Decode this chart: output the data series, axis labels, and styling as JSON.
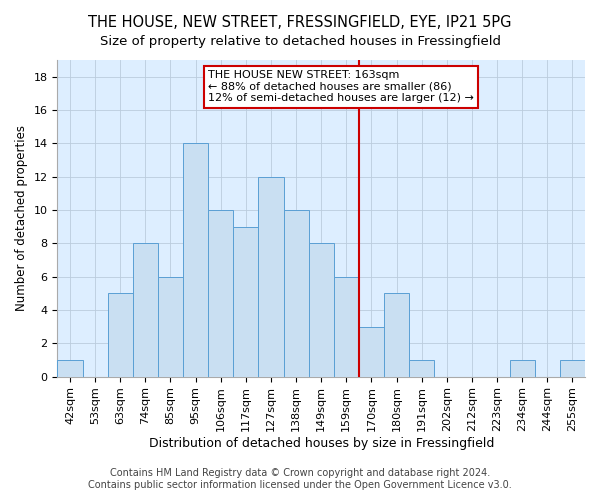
{
  "title": "THE HOUSE, NEW STREET, FRESSINGFIELD, EYE, IP21 5PG",
  "subtitle": "Size of property relative to detached houses in Fressingfield",
  "xlabel": "Distribution of detached houses by size in Fressingfield",
  "ylabel": "Number of detached properties",
  "bar_labels": [
    "42sqm",
    "53sqm",
    "63sqm",
    "74sqm",
    "85sqm",
    "95sqm",
    "106sqm",
    "117sqm",
    "127sqm",
    "138sqm",
    "149sqm",
    "159sqm",
    "170sqm",
    "180sqm",
    "191sqm",
    "202sqm",
    "212sqm",
    "223sqm",
    "234sqm",
    "244sqm",
    "255sqm"
  ],
  "bar_values": [
    1,
    0,
    5,
    8,
    6,
    14,
    10,
    9,
    12,
    10,
    8,
    6,
    3,
    5,
    1,
    0,
    0,
    0,
    1,
    0,
    1
  ],
  "bar_color": "#c9dff2",
  "bar_edge_color": "#5a9fd4",
  "vline_color": "#cc0000",
  "vline_x_index": 11.5,
  "annotation_line1": "THE HOUSE NEW STREET: 163sqm",
  "annotation_line2": "← 88% of detached houses are smaller (86)",
  "annotation_line3": "12% of semi-detached houses are larger (12) →",
  "ylim": [
    0,
    19
  ],
  "yticks": [
    0,
    2,
    4,
    6,
    8,
    10,
    12,
    14,
    16,
    18
  ],
  "footer1": "Contains HM Land Registry data © Crown copyright and database right 2024.",
  "footer2": "Contains public sector information licensed under the Open Government Licence v3.0.",
  "title_fontsize": 10.5,
  "subtitle_fontsize": 9.5,
  "xlabel_fontsize": 9,
  "ylabel_fontsize": 8.5,
  "tick_fontsize": 8,
  "annotation_fontsize": 8,
  "footer_fontsize": 7,
  "bg_color": "#ddeeff"
}
